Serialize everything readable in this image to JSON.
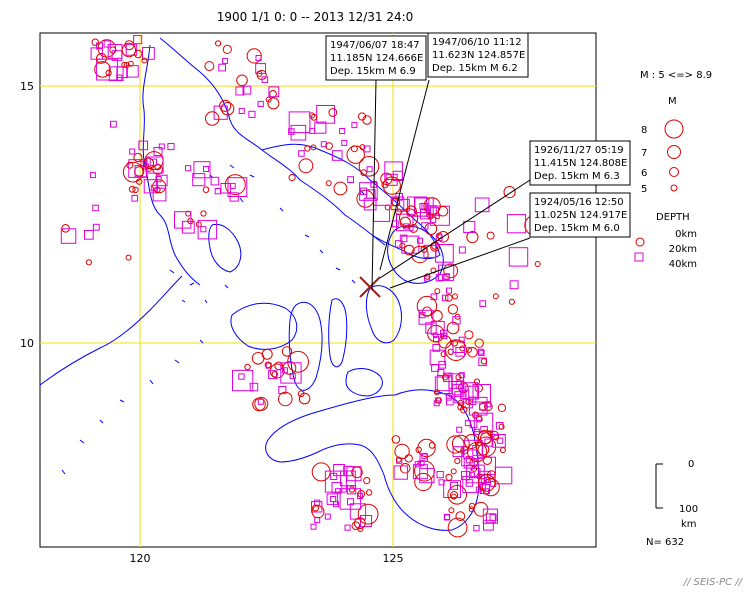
{
  "title": "1900 1/1  0: 0 -- 2013 12/31  24:0",
  "map": {
    "lat_labels": [
      "15",
      "10"
    ],
    "lon_labels": [
      "120",
      "125"
    ],
    "colors": {
      "frame": "#000000",
      "grid": "#f0e000",
      "coast": "#0000ff",
      "shallow_event": "#e00000",
      "deep_event": "#e000e0",
      "leader": "#000000",
      "epicenter_mark": "#9a2020"
    }
  },
  "callouts": [
    {
      "date": "1947/06/07  18:47",
      "coords": "11.185N   124.666E",
      "dep": "Dep. 15km    M 6.9"
    },
    {
      "date": "1947/06/10  11:12",
      "coords": "11.623N   124.857E",
      "dep": "Dep. 15km    M 6.2"
    },
    {
      "date": "1926/11/27  05:19",
      "coords": "11.415N   124.808E",
      "dep": "Dep. 15km    M 6.3"
    },
    {
      "date": "1924/05/16  12:50",
      "coords": "11.025N   124.917E",
      "dep": "Dep. 15km    M 6.0"
    }
  ],
  "legend": {
    "m_range": "M : 5 <=> 8.9",
    "m_title": "M",
    "m_sizes": [
      "8",
      "7",
      "6",
      "5"
    ],
    "depth_title": "DEPTH",
    "depth_values": [
      "0km",
      "20km",
      "40km"
    ],
    "scale_top": "0",
    "scale_bottom": "100",
    "scale_unit": "km",
    "count": "N=  632"
  },
  "brand": "// SEIS-PC //"
}
